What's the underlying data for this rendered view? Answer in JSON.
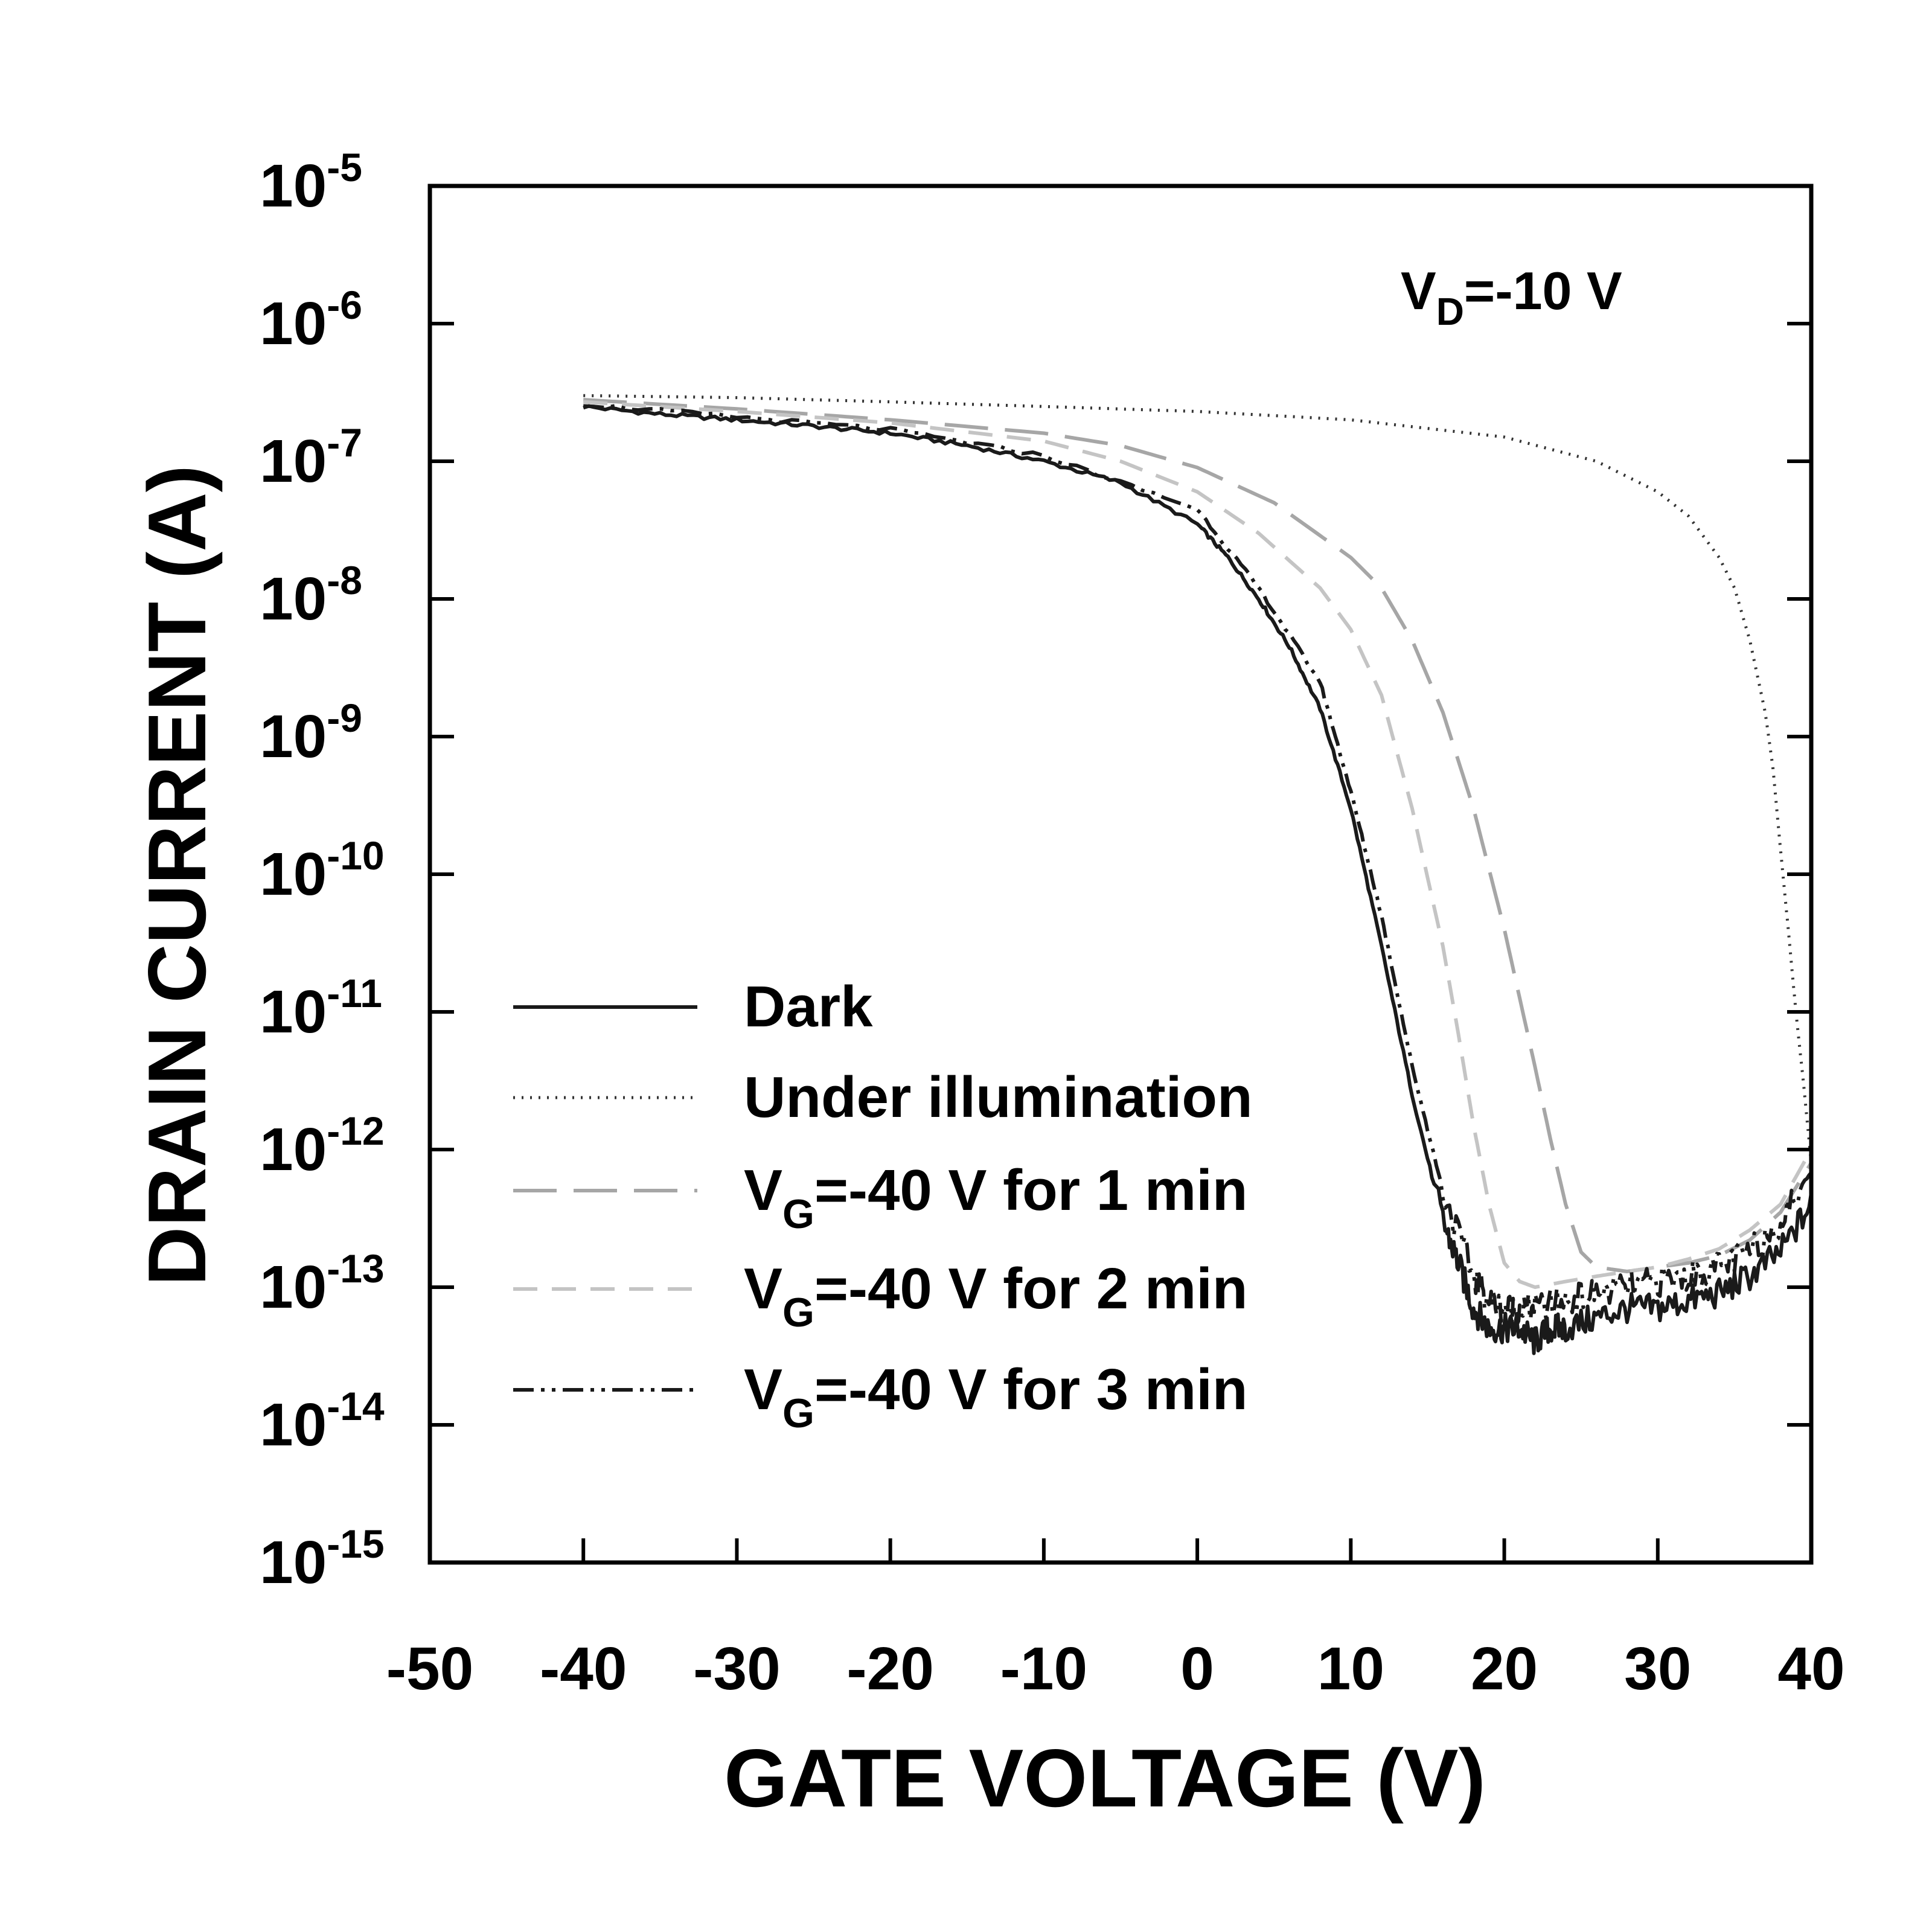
{
  "chart_data": {
    "type": "line",
    "title": "",
    "xlabel": "GATE VOLTAGE (V)",
    "ylabel": "DRAIN CURRENT (A)",
    "xlim": [
      -50,
      40
    ],
    "ylim": [
      1e-15,
      1e-05
    ],
    "yscale": "log",
    "grid": false,
    "legend_position": "lower-left",
    "x_ticks": [
      -50,
      -40,
      -30,
      -20,
      -10,
      0,
      10,
      20,
      30,
      40
    ],
    "x_tick_labels": [
      "-50",
      "-40",
      "-30",
      "-20",
      "-10",
      "0",
      "10",
      "20",
      "30",
      "40"
    ],
    "y_ticks": [
      {
        "base": "10",
        "exp": "-5"
      },
      {
        "base": "10",
        "exp": "-6"
      },
      {
        "base": "10",
        "exp": "-7"
      },
      {
        "base": "10",
        "exp": "-8"
      },
      {
        "base": "10",
        "exp": "-9"
      },
      {
        "base": "10",
        "exp": "-10"
      },
      {
        "base": "10",
        "exp": "-11"
      },
      {
        "base": "10",
        "exp": "-12"
      },
      {
        "base": "10",
        "exp": "-13"
      },
      {
        "base": "10",
        "exp": "-14"
      },
      {
        "base": "10",
        "exp": "-15"
      }
    ],
    "annotation": {
      "main": "V",
      "sub": "D",
      "rest": "=-10 V"
    },
    "series": [
      {
        "name": "Dark",
        "legend": {
          "main": "Dark",
          "sub": "",
          "rest": ""
        },
        "color": "#1a1a1a",
        "style": "solid",
        "noisy": true,
        "x": [
          -40,
          -35,
          -30,
          -25,
          -20,
          -15,
          -10,
          -5,
          0,
          2,
          4,
          6,
          8,
          10,
          12,
          14,
          16,
          17,
          18,
          19,
          20,
          21,
          22,
          23,
          24,
          26,
          28,
          30,
          32,
          34,
          36,
          38,
          40
        ],
        "y": [
          2.5e-07,
          2.2e-07,
          2e-07,
          1.8e-07,
          1.6e-07,
          1.3e-07,
          1e-07,
          7e-08,
          3.5e-08,
          2e-08,
          1e-08,
          4.5e-09,
          1.6e-09,
          3e-10,
          3e-11,
          2.5e-12,
          3e-13,
          1.5e-13,
          7e-14,
          5e-14,
          5e-14,
          5e-14,
          4e-14,
          5e-14,
          5e-14,
          6e-14,
          7e-14,
          7e-14,
          8e-14,
          9e-14,
          1.2e-13,
          1.8e-13,
          4e-13
        ]
      },
      {
        "name": "Under illumination",
        "legend": {
          "main": "Under illumination",
          "sub": "",
          "rest": ""
        },
        "color": "#333333",
        "style": "dotted",
        "noisy": false,
        "x": [
          -40,
          -30,
          -20,
          -10,
          0,
          10,
          20,
          26,
          30,
          32,
          34,
          35,
          36,
          37,
          37.5,
          38,
          38.5,
          39,
          39.5,
          40
        ],
        "y": [
          3e-07,
          2.9e-07,
          2.7e-07,
          2.5e-07,
          2.3e-07,
          2e-07,
          1.5e-07,
          1e-07,
          6e-08,
          4e-08,
          2e-08,
          1.2e-08,
          5e-09,
          1.5e-09,
          6e-10,
          1.5e-10,
          4e-11,
          1e-11,
          3e-12,
          8e-13
        ]
      },
      {
        "name": "VG=-40 V for 1 min",
        "legend": {
          "main": "V",
          "sub": "G",
          "rest": "=-40 V for 1 min"
        },
        "color": "#a6a6a6",
        "style": "longdash",
        "noisy": false,
        "x": [
          -40,
          -30,
          -20,
          -10,
          -5,
          0,
          5,
          10,
          12,
          14,
          16,
          18,
          20,
          22,
          23,
          24,
          25,
          26,
          28,
          30,
          32,
          34,
          36,
          38,
          40
        ],
        "y": [
          2.8e-07,
          2.4e-07,
          2e-07,
          1.6e-07,
          1.3e-07,
          9e-08,
          5e-08,
          2e-08,
          1.2e-08,
          5e-09,
          1.5e-09,
          3e-10,
          4e-11,
          4e-12,
          1.2e-12,
          4e-13,
          1.8e-13,
          1.4e-13,
          1.3e-13,
          1.4e-13,
          1.5e-13,
          1.7e-13,
          2.2e-13,
          3.5e-13,
          8e-13
        ]
      },
      {
        "name": "VG=-40 V for 2 min",
        "legend": {
          "main": "V",
          "sub": "G",
          "rest": "=-40 V for 2 min"
        },
        "color": "#c4c4c4",
        "style": "dash",
        "noisy": false,
        "x": [
          -40,
          -30,
          -20,
          -10,
          -5,
          0,
          4,
          8,
          10,
          12,
          14,
          16,
          17,
          18,
          19,
          20,
          21,
          22,
          24,
          26,
          28,
          30,
          32,
          34,
          36,
          38,
          40
        ],
        "y": [
          2.7e-07,
          2.3e-07,
          1.9e-07,
          1.4e-07,
          1e-07,
          6e-08,
          3e-08,
          1.2e-08,
          6e-09,
          2e-09,
          3e-10,
          3e-11,
          7e-12,
          1.5e-12,
          4e-13,
          1.5e-13,
          1.1e-13,
          1e-13,
          1.1e-13,
          1.2e-13,
          1.3e-13,
          1.4e-13,
          1.6e-13,
          1.9e-13,
          2.6e-13,
          4e-13,
          1e-12
        ]
      },
      {
        "name": "VG=-40 V for 3 min",
        "legend": {
          "main": "V",
          "sub": "G",
          "rest": "=-40 V for 3 min"
        },
        "color": "#1a1a1a",
        "style": "dashdotdot",
        "noisy": true,
        "x": [
          -40,
          -30,
          -20,
          -10,
          0,
          4,
          8,
          10,
          12,
          14,
          16,
          18,
          19,
          20,
          21,
          22,
          24,
          26,
          28,
          30,
          32,
          34,
          36,
          38,
          40
        ],
        "y": [
          2.6e-07,
          2.1e-07,
          1.7e-07,
          1.1e-07,
          4.5e-08,
          1.2e-08,
          2.5e-09,
          4e-10,
          5e-11,
          4e-12,
          5e-13,
          1.2e-13,
          8e-14,
          7e-14,
          7e-14,
          7e-14,
          8e-14,
          9e-14,
          1e-13,
          1.1e-13,
          1.2e-13,
          1.4e-13,
          1.8e-13,
          3e-13,
          7e-13
        ]
      }
    ]
  }
}
